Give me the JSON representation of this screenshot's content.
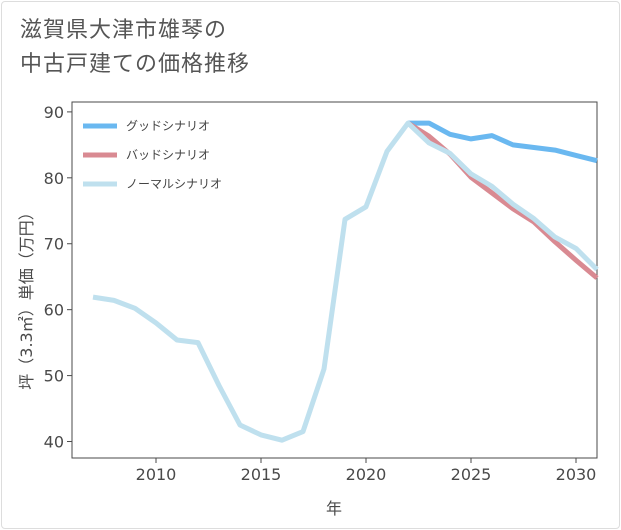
{
  "title_lines": [
    "滋賀県大津市雄琴の",
    "中古戸建ての価格推移"
  ],
  "chart_data": {
    "type": "line",
    "title": "滋賀県大津市雄琴の中古戸建ての価格推移",
    "xlabel": "年",
    "ylabel": "坪（3.3㎡）単価（万円）",
    "xlim": [
      2006,
      2031
    ],
    "ylim": [
      37.5,
      91.5
    ],
    "x_ticks": [
      2010,
      2015,
      2020,
      2025,
      2030
    ],
    "y_ticks": [
      40,
      50,
      60,
      70,
      80,
      90
    ],
    "grid": false,
    "legend_position": "top-left",
    "series": [
      {
        "name": "グッドシナリオ",
        "color": "#6ab8f0",
        "x": [
          2022,
          2023,
          2024,
          2025,
          2026,
          2027,
          2028,
          2029,
          2030,
          2031
        ],
        "y": [
          88.3,
          88.3,
          86.6,
          85.9,
          86.4,
          85.0,
          84.6,
          84.2,
          83.4,
          82.6
        ]
      },
      {
        "name": "バッドシナリオ",
        "color": "#d98a92",
        "x": [
          2022,
          2023,
          2024,
          2025,
          2026,
          2027,
          2028,
          2029,
          2030,
          2031
        ],
        "y": [
          88.3,
          86.3,
          83.6,
          80.1,
          77.7,
          75.3,
          73.3,
          70.3,
          67.5,
          64.8
        ]
      },
      {
        "name": "ノーマルシナリオ",
        "color": "#bfe0ee",
        "x": [
          2007,
          2008,
          2009,
          2010,
          2011,
          2012,
          2013,
          2014,
          2015,
          2016,
          2017,
          2018,
          2019,
          2020,
          2021,
          2022,
          2023,
          2024,
          2025,
          2026,
          2027,
          2028,
          2029,
          2030,
          2031
        ],
        "y": [
          61.9,
          61.4,
          60.2,
          58.0,
          55.4,
          55.0,
          48.5,
          42.5,
          41.0,
          40.2,
          41.5,
          51.0,
          73.7,
          75.6,
          84.0,
          88.3,
          85.3,
          83.7,
          80.6,
          78.7,
          76.0,
          73.8,
          71.0,
          69.3,
          66.1
        ]
      }
    ]
  }
}
